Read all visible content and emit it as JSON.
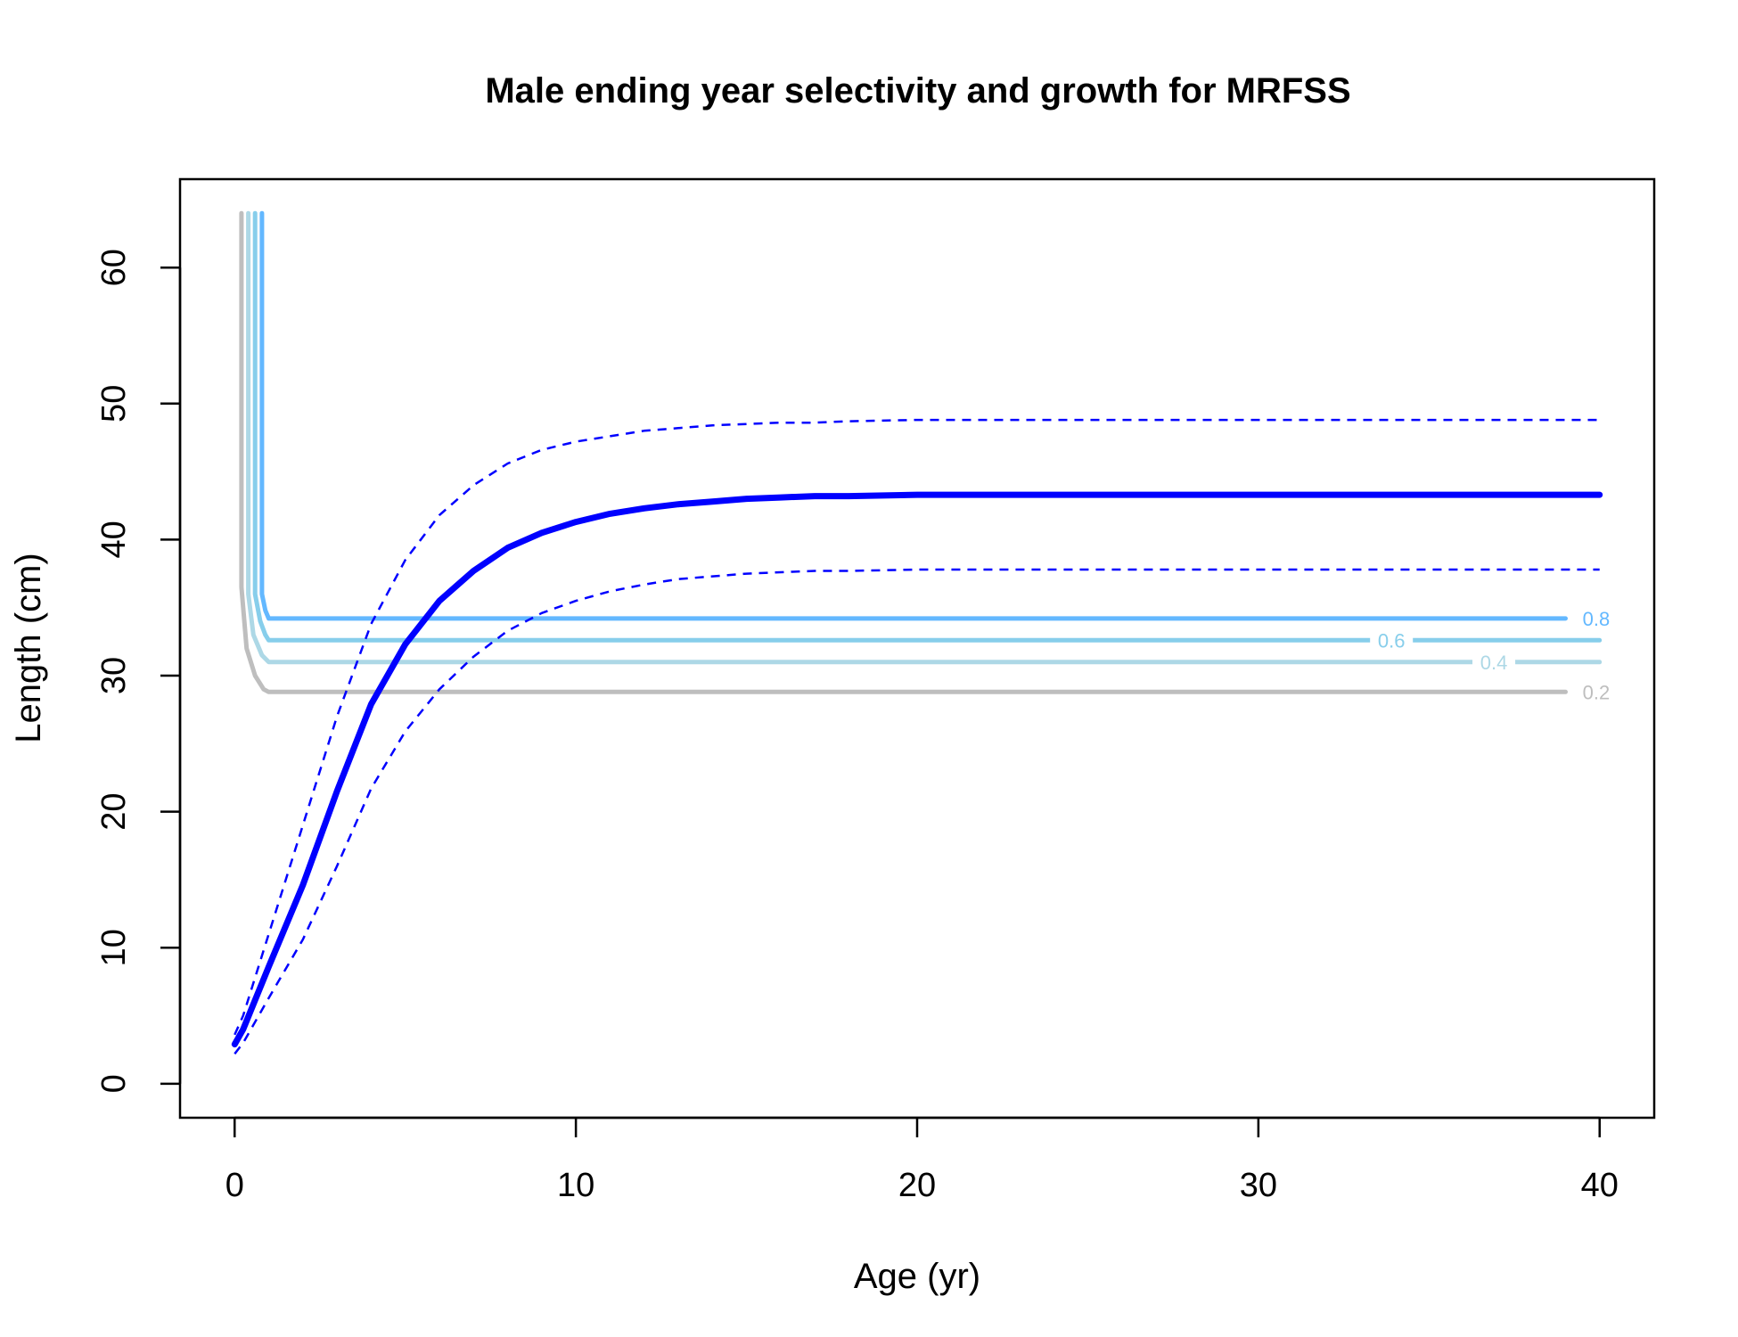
{
  "chart_data": {
    "type": "line",
    "title": "Male ending year selectivity and growth for MRFSS",
    "xlabel": "Age (yr)",
    "ylabel": "Length (cm)",
    "xlim": [
      -1.6,
      41.6
    ],
    "ylim": [
      -2.5,
      66.5
    ],
    "xticks": [
      0,
      10,
      20,
      30,
      40
    ],
    "yticks": [
      0,
      10,
      20,
      30,
      40,
      50,
      60
    ],
    "grid": false,
    "legend": "none",
    "series": [
      {
        "role": "growth-mean",
        "color": "#0000ff",
        "style": "solid-thick",
        "x": [
          0,
          0.25,
          1,
          2,
          3,
          4,
          5,
          6,
          7,
          8,
          9,
          10,
          11,
          12,
          13,
          14,
          15,
          16,
          17,
          18,
          20,
          25,
          30,
          35,
          40
        ],
        "y": [
          2.9,
          4.0,
          8.6,
          14.6,
          21.5,
          27.9,
          32.3,
          35.5,
          37.7,
          39.4,
          40.5,
          41.3,
          41.9,
          42.3,
          42.6,
          42.8,
          43.0,
          43.1,
          43.2,
          43.2,
          43.3,
          43.3,
          43.3,
          43.3,
          43.3
        ]
      },
      {
        "role": "growth-upper-interval",
        "color": "#0000ff",
        "style": "dashed",
        "x": [
          0,
          0.25,
          1,
          2,
          3,
          4,
          5,
          6,
          7,
          8,
          9,
          10,
          11,
          12,
          13,
          14,
          15,
          16,
          17,
          18,
          20,
          25,
          30,
          35,
          40
        ],
        "y": [
          3.6,
          5.0,
          11.0,
          19.0,
          27.0,
          33.8,
          38.5,
          41.8,
          44.0,
          45.6,
          46.6,
          47.2,
          47.6,
          48.0,
          48.2,
          48.4,
          48.5,
          48.6,
          48.6,
          48.7,
          48.8,
          48.8,
          48.8,
          48.8,
          48.8
        ]
      },
      {
        "role": "growth-lower-interval",
        "color": "#0000ff",
        "style": "dashed",
        "x": [
          0,
          0.25,
          1,
          2,
          3,
          4,
          5,
          6,
          7,
          8,
          9,
          10,
          11,
          12,
          13,
          14,
          15,
          16,
          17,
          18,
          20,
          25,
          30,
          35,
          40
        ],
        "y": [
          2.2,
          3.0,
          6.3,
          10.6,
          16.0,
          21.7,
          25.9,
          29.0,
          31.4,
          33.3,
          34.6,
          35.5,
          36.2,
          36.7,
          37.1,
          37.3,
          37.5,
          37.6,
          37.7,
          37.7,
          37.8,
          37.8,
          37.8,
          37.8,
          37.8
        ]
      }
    ],
    "contours": [
      {
        "label": "0.2",
        "color": "#bebebe",
        "x": [
          0.2,
          0.2,
          0.35,
          0.6,
          0.85,
          1.0,
          39.0
        ],
        "y": [
          64.0,
          36.5,
          32.0,
          30.0,
          29.0,
          28.8,
          28.8
        ],
        "label_x": 39.9,
        "label_y": 28.8,
        "line_extends_past_label": false
      },
      {
        "label": "0.4",
        "color": "#add8e6",
        "x": [
          0.4,
          0.4,
          0.55,
          0.8,
          1.0,
          40.0
        ],
        "y": [
          64.0,
          36.0,
          33.0,
          31.5,
          31.0,
          31.0
        ],
        "label_x": 36.9,
        "label_y": 31.0,
        "line_extends_past_label": true
      },
      {
        "label": "0.6",
        "color": "#87ceeb",
        "x": [
          0.6,
          0.6,
          0.75,
          0.9,
          1.0,
          40.0
        ],
        "y": [
          64.0,
          36.0,
          34.0,
          33.0,
          32.6,
          32.6
        ],
        "label_x": 33.9,
        "label_y": 32.6,
        "line_extends_past_label": true
      },
      {
        "label": "0.8",
        "color": "#63b8ff",
        "x": [
          0.8,
          0.8,
          0.9,
          1.0,
          39.0
        ],
        "y": [
          64.0,
          36.0,
          34.8,
          34.2,
          34.2
        ],
        "label_x": 39.9,
        "label_y": 34.2,
        "line_extends_past_label": false
      }
    ]
  }
}
